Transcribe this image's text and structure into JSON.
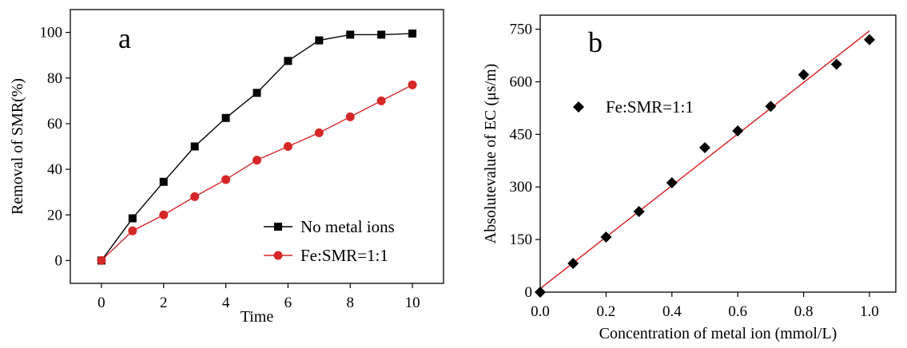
{
  "chart_data": [
    {
      "type": "line",
      "panel_label": "a",
      "xlabel": "Time",
      "ylabel": "Removal of SMR(%)",
      "xlim": [
        -1,
        11
      ],
      "ylim": [
        -10,
        110
      ],
      "xticks": [
        0,
        2,
        4,
        6,
        8,
        10
      ],
      "yticks": [
        0,
        20,
        40,
        60,
        80,
        100
      ],
      "legend_position": "bottom-right",
      "series": [
        {
          "name": "No metal ions",
          "color": "#000000",
          "marker": "square",
          "x": [
            0,
            1,
            2,
            3,
            4,
            5,
            6,
            7,
            8,
            9,
            10
          ],
          "y": [
            0,
            18.5,
            34.5,
            50,
            62.5,
            73.5,
            87.5,
            96.5,
            99,
            99,
            99.5
          ]
        },
        {
          "name": "Fe:SMR=1:1",
          "color": "#d62728",
          "marker": "circle",
          "x": [
            0,
            1,
            2,
            3,
            4,
            5,
            6,
            7,
            8,
            9,
            10
          ],
          "y": [
            0,
            13,
            20,
            28,
            35.5,
            44,
            50,
            56,
            63,
            70,
            77
          ]
        }
      ]
    },
    {
      "type": "scatter",
      "panel_label": "b",
      "xlabel": "Concentration of metal ion (mmol/L)",
      "ylabel": "Absolutevalue of EC (μs/m)",
      "xlim": [
        0,
        1.08
      ],
      "ylim": [
        0,
        790
      ],
      "xticks": [
        "0.0",
        "0.2",
        "0.4",
        "0.6",
        "0.8",
        "1.0"
      ],
      "yticks": [
        0,
        150,
        300,
        450,
        600,
        750
      ],
      "legend_position": "top-left",
      "series": [
        {
          "name": "Fe:SMR=1:1",
          "color": "#000000",
          "marker": "diamond",
          "x": [
            0.0,
            0.1,
            0.2,
            0.3,
            0.4,
            0.5,
            0.6,
            0.7,
            0.8,
            0.9,
            1.0
          ],
          "y": [
            0,
            82,
            157,
            230,
            312,
            412,
            460,
            530,
            620,
            650,
            720
          ]
        }
      ],
      "fit_line": {
        "color": "#d62728",
        "x": [
          0.0,
          1.0
        ],
        "y": [
          10,
          745
        ]
      }
    }
  ]
}
